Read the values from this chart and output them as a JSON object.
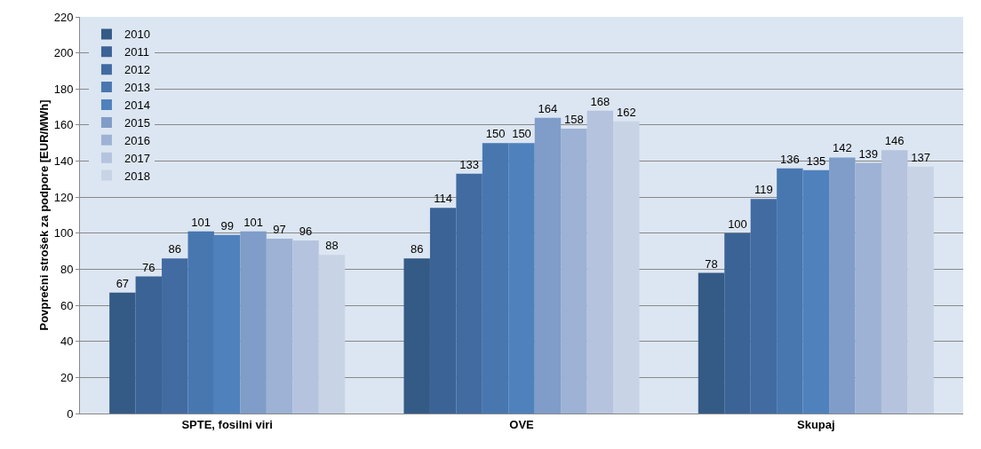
{
  "chart_data": {
    "type": "bar",
    "ylabel": "Povprečni strošek za podpore [EUR/MWh]",
    "categories": [
      "SPTE, fosilni viri",
      "OVE",
      "Skupaj"
    ],
    "series": [
      {
        "name": "2010",
        "color": "#345a86",
        "values": [
          67,
          86,
          78
        ]
      },
      {
        "name": "2011",
        "color": "#3b6396",
        "values": [
          76,
          114,
          100
        ]
      },
      {
        "name": "2012",
        "color": "#416ba1",
        "values": [
          86,
          133,
          119
        ]
      },
      {
        "name": "2013",
        "color": "#4877b0",
        "values": [
          101,
          150,
          136
        ]
      },
      {
        "name": "2014",
        "color": "#4f81bd",
        "values": [
          99,
          150,
          135
        ]
      },
      {
        "name": "2015",
        "color": "#7f9dc8",
        "values": [
          101,
          164,
          142
        ]
      },
      {
        "name": "2016",
        "color": "#9db2d4",
        "values": [
          97,
          158,
          139
        ]
      },
      {
        "name": "2017",
        "color": "#b5c3de",
        "values": [
          96,
          168,
          146
        ]
      },
      {
        "name": "2018",
        "color": "#c8d3e5",
        "values": [
          88,
          162,
          137
        ]
      }
    ],
    "ylim": [
      0,
      220
    ],
    "yticks": [
      0,
      20,
      40,
      60,
      80,
      100,
      120,
      140,
      160,
      180,
      200,
      220
    ],
    "grid": "y",
    "legend": "top left",
    "data_labels": true
  }
}
